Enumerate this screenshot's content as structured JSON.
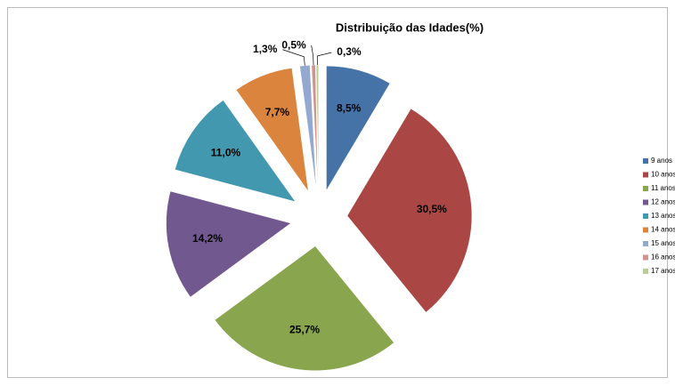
{
  "chart_data": {
    "type": "pie",
    "title": "Distribuição das Idades(%)",
    "categories": [
      "9 anos",
      "10 anos",
      "11 anos",
      "12 anos",
      "13 anos",
      "14 anos",
      "15 anos",
      "16 anos",
      "17 anos"
    ],
    "values": [
      8.5,
      30.5,
      25.7,
      14.2,
      11.0,
      7.7,
      1.3,
      0.5,
      0.3
    ],
    "value_labels": [
      "8,5%",
      "30,5%",
      "25,7%",
      "14,2%",
      "11,0%",
      "7,7%",
      "1,3%",
      "0,5%",
      "0,3%"
    ],
    "colors": [
      "#4572a7",
      "#aa4643",
      "#89a54e",
      "#71588f",
      "#4198af",
      "#db843d",
      "#93a9cf",
      "#d19392",
      "#b9cd96"
    ],
    "legend": "right"
  }
}
